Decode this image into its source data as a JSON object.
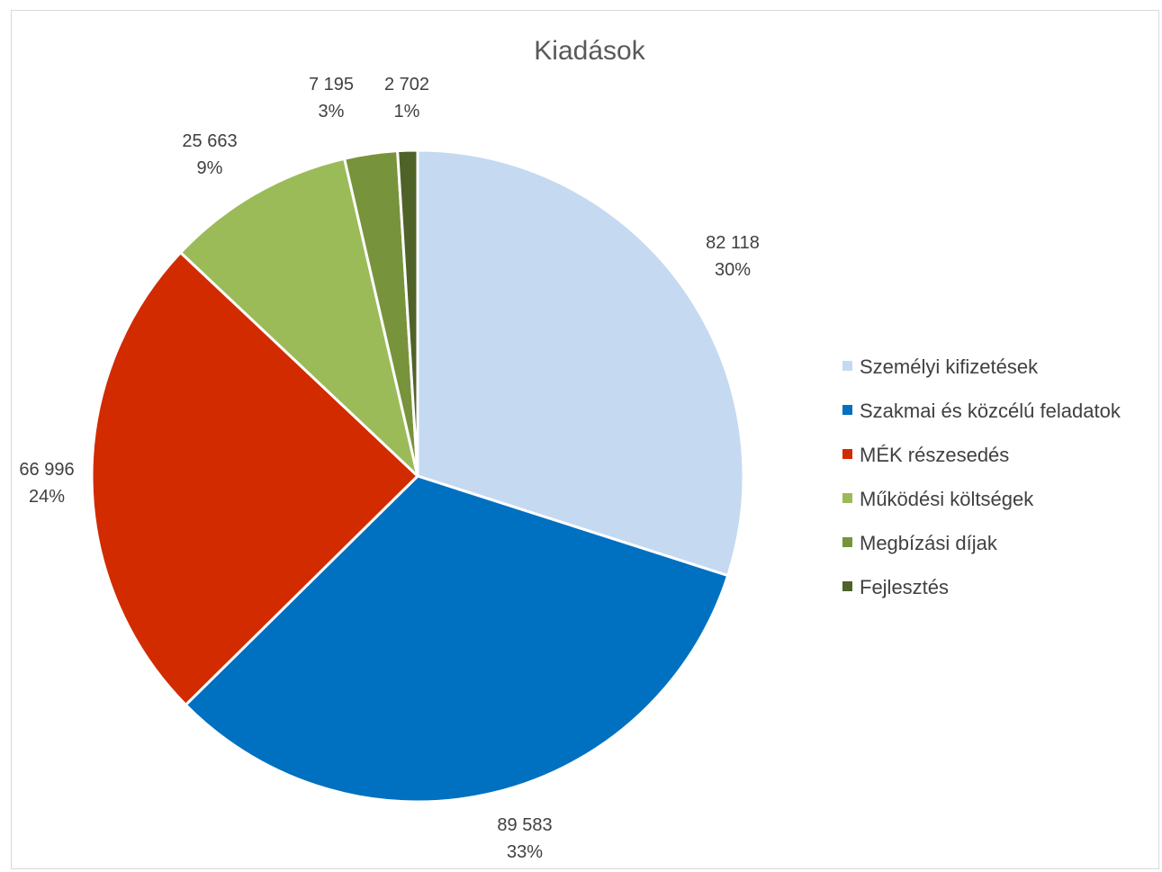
{
  "chart_data": {
    "type": "pie",
    "title": "Kiadások",
    "categories": [
      "Személyi kifizetések",
      "Szakmai és közcélú feladatok",
      "MÉK részesedés",
      "Működési költségek",
      "Megbízási díjak",
      "Fejlesztés"
    ],
    "values": [
      82118,
      89583,
      66996,
      25663,
      7195,
      2702
    ],
    "value_labels": [
      "82 118",
      "89 583",
      "66 996",
      "25 663",
      "7 195",
      "2 702"
    ],
    "percent_labels": [
      "30%",
      "33%",
      "24%",
      "9%",
      "3%",
      "1%"
    ],
    "colors": [
      "#c5d9f1",
      "#0070c0",
      "#d22b00",
      "#9bbb59",
      "#77933c",
      "#4f6228"
    ],
    "start_angle_deg": 0,
    "direction": "clockwise",
    "legend_position": "right"
  }
}
